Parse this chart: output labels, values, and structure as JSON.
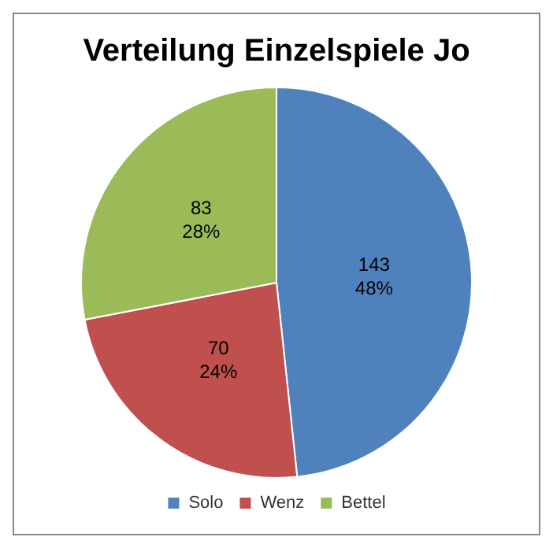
{
  "chart_data": {
    "type": "pie",
    "title": "Verteilung Einzelspiele Jo",
    "categories": [
      "Solo",
      "Wenz",
      "Bettel"
    ],
    "values": [
      143,
      70,
      83
    ],
    "colors": [
      "#4f81bd",
      "#c0504d",
      "#9bbb59"
    ],
    "value_labels": [
      "143\n48%",
      "70\n24%",
      "83\n28%"
    ],
    "legend": "bottom"
  }
}
